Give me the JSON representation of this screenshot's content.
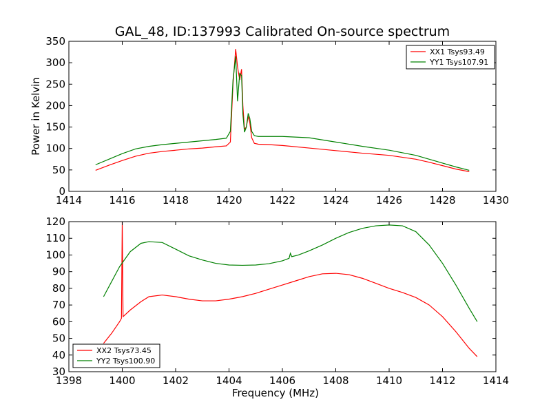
{
  "chart_data": [
    {
      "type": "line",
      "title": "GAL_48, ID:137993 Calibrated On-source spectrum",
      "xlabel": "",
      "ylabel": "Power in Kelvin",
      "xlim": [
        1414,
        1430
      ],
      "ylim": [
        0,
        350
      ],
      "xticks": [
        1414,
        1416,
        1418,
        1420,
        1422,
        1424,
        1426,
        1428,
        1430
      ],
      "yticks": [
        0,
        50,
        100,
        150,
        200,
        250,
        300,
        350
      ],
      "legend_position": "top-right",
      "series": [
        {
          "name": "XX1 Tsys93.49",
          "color": "#ff0000",
          "x": [
            1415.0,
            1415.5,
            1416.0,
            1416.5,
            1417.0,
            1417.5,
            1418.0,
            1418.5,
            1419.0,
            1419.5,
            1419.9,
            1420.05,
            1420.15,
            1420.25,
            1420.32,
            1420.4,
            1420.47,
            1420.52,
            1420.58,
            1420.65,
            1420.72,
            1420.78,
            1420.85,
            1420.95,
            1421.1,
            1421.5,
            1422.0,
            1423.0,
            1424.0,
            1425.0,
            1426.0,
            1427.0,
            1427.5,
            1428.0,
            1428.5,
            1429.0
          ],
          "y": [
            49,
            61,
            72,
            82,
            89,
            93,
            96,
            99,
            101,
            104,
            106,
            115,
            250,
            332,
            290,
            260,
            285,
            200,
            145,
            150,
            175,
            160,
            125,
            112,
            110,
            109,
            107,
            101,
            95,
            89,
            84,
            75,
            68,
            60,
            52,
            46
          ]
        },
        {
          "name": "YY1 Tsys107.91",
          "color": "#008000",
          "x": [
            1415.0,
            1415.5,
            1416.0,
            1416.5,
            1417.0,
            1417.5,
            1418.0,
            1418.5,
            1419.0,
            1419.5,
            1419.9,
            1420.05,
            1420.15,
            1420.25,
            1420.32,
            1420.4,
            1420.47,
            1420.52,
            1420.58,
            1420.65,
            1420.72,
            1420.78,
            1420.85,
            1420.95,
            1421.1,
            1421.5,
            1422.0,
            1423.0,
            1424.0,
            1425.0,
            1426.0,
            1427.0,
            1427.5,
            1428.0,
            1428.5,
            1429.0
          ],
          "y": [
            62,
            75,
            88,
            99,
            105,
            109,
            112,
            115,
            118,
            121,
            124,
            140,
            260,
            315,
            210,
            275,
            270,
            180,
            138,
            150,
            182,
            170,
            140,
            130,
            128,
            128,
            128,
            125,
            115,
            105,
            96,
            84,
            75,
            66,
            57,
            49
          ]
        }
      ]
    },
    {
      "type": "line",
      "title": "",
      "xlabel": "Frequency (MHz)",
      "ylabel": "",
      "xlim": [
        1398,
        1414
      ],
      "ylim": [
        30,
        120
      ],
      "xticks": [
        1398,
        1400,
        1402,
        1404,
        1406,
        1408,
        1410,
        1412,
        1414
      ],
      "yticks": [
        30,
        40,
        50,
        60,
        70,
        80,
        90,
        100,
        110,
        120
      ],
      "legend_position": "bottom-left",
      "series": [
        {
          "name": "XX2 Tsys73.45",
          "color": "#ff0000",
          "x": [
            1399.3,
            1399.6,
            1399.9,
            1399.97,
            1400.0,
            1400.03,
            1400.3,
            1400.7,
            1401.0,
            1401.5,
            1402.0,
            1402.5,
            1403.0,
            1403.5,
            1404.0,
            1404.5,
            1405.0,
            1405.5,
            1406.0,
            1406.5,
            1407.0,
            1407.5,
            1408.0,
            1408.5,
            1409.0,
            1409.5,
            1410.0,
            1410.5,
            1411.0,
            1411.5,
            1412.0,
            1412.5,
            1413.0,
            1413.3
          ],
          "y": [
            47,
            53,
            60,
            62,
            120,
            63,
            67,
            72,
            75,
            76,
            75,
            73.5,
            72.5,
            72.5,
            73.5,
            75,
            77,
            79.5,
            82,
            84.5,
            87,
            88.7,
            89,
            88.2,
            86,
            83,
            80,
            77.5,
            74.5,
            70,
            63,
            54,
            44,
            39
          ]
        },
        {
          "name": "YY2 Tsys100.90",
          "color": "#008000",
          "x": [
            1399.3,
            1399.6,
            1399.9,
            1400.3,
            1400.7,
            1401.0,
            1401.5,
            1402.0,
            1402.5,
            1403.0,
            1403.5,
            1404.0,
            1404.5,
            1405.0,
            1405.5,
            1406.0,
            1406.25,
            1406.3,
            1406.35,
            1406.6,
            1407.0,
            1407.5,
            1408.0,
            1408.5,
            1409.0,
            1409.5,
            1410.0,
            1410.5,
            1411.0,
            1411.5,
            1412.0,
            1412.5,
            1413.0,
            1413.3
          ],
          "y": [
            75,
            84,
            93,
            102,
            107,
            108,
            107.5,
            103.5,
            99.5,
            97,
            95,
            94,
            93.8,
            94,
            94.8,
            96.5,
            98,
            101,
            99,
            100,
            102.5,
            106,
            110,
            113.5,
            116,
            117.5,
            118,
            117.5,
            114,
            106,
            95,
            82,
            68,
            60
          ]
        }
      ]
    }
  ]
}
